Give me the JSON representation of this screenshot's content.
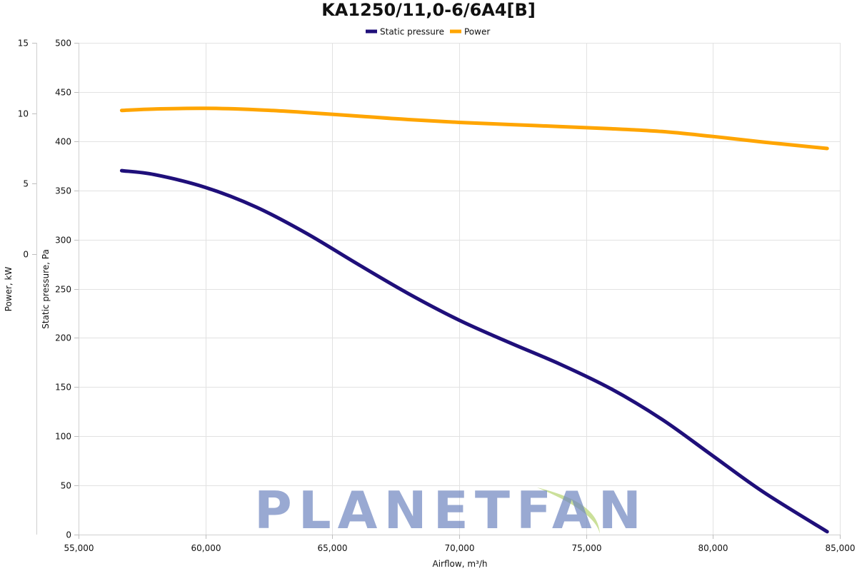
{
  "title": "KA1250/11,0-6/6A4[B]",
  "watermark": "PLANETFAN",
  "colors": {
    "static_pressure": "#1f0f7a",
    "power": "#ffa500",
    "watermark_text": "#6f86bf",
    "watermark_leaf": "#c5dd8f"
  },
  "legend": {
    "items": [
      {
        "label": "Static pressure"
      },
      {
        "label": "Power"
      }
    ]
  },
  "chart_data": {
    "type": "line",
    "title": "KA1250/11,0-6/6A4[B]",
    "xlabel": "Airflow, m³/h",
    "ylabel": "Static pressure, Pa",
    "y2label": "Power, kW",
    "xlim": [
      55000,
      85000
    ],
    "ylim": [
      0,
      500
    ],
    "y2lim": [
      -20,
      15
    ],
    "grid": true,
    "legend_position": "top-center",
    "x_ticks": [
      "55,000",
      "60,000",
      "65,000",
      "70,000",
      "75,000",
      "80,000",
      "85,000"
    ],
    "x_tick_values": [
      55000,
      60000,
      65000,
      70000,
      75000,
      80000,
      85000
    ],
    "y_ticks": [
      "0",
      "50",
      "100",
      "150",
      "200",
      "250",
      "300",
      "350",
      "400",
      "450",
      "500"
    ],
    "y_tick_values": [
      0,
      50,
      100,
      150,
      200,
      250,
      300,
      350,
      400,
      450,
      500
    ],
    "y2_ticks": [
      "15",
      "10",
      "5",
      "0"
    ],
    "y2_tick_values": [
      15,
      10,
      5,
      0
    ],
    "series": [
      {
        "name": "Static pressure",
        "axis": "left",
        "color": "#1f0f7a",
        "x": [
          56700,
          58000,
          60000,
          62000,
          64000,
          66000,
          68000,
          70000,
          72000,
          74000,
          76000,
          78000,
          80000,
          82000,
          84500
        ],
        "y": [
          370,
          366,
          353,
          333,
          306,
          275,
          245,
          218,
          195,
          173,
          148,
          117,
          80,
          43,
          3
        ]
      },
      {
        "name": "Power",
        "axis": "right",
        "color": "#ffa500",
        "x": [
          56700,
          58000,
          60000,
          62000,
          64000,
          66000,
          68000,
          70000,
          72000,
          74000,
          76000,
          78000,
          80000,
          82000,
          84500
        ],
        "y": [
          10.2,
          10.3,
          10.35,
          10.25,
          10.05,
          9.8,
          9.55,
          9.35,
          9.2,
          9.05,
          8.9,
          8.7,
          8.35,
          7.95,
          7.5
        ]
      }
    ]
  }
}
